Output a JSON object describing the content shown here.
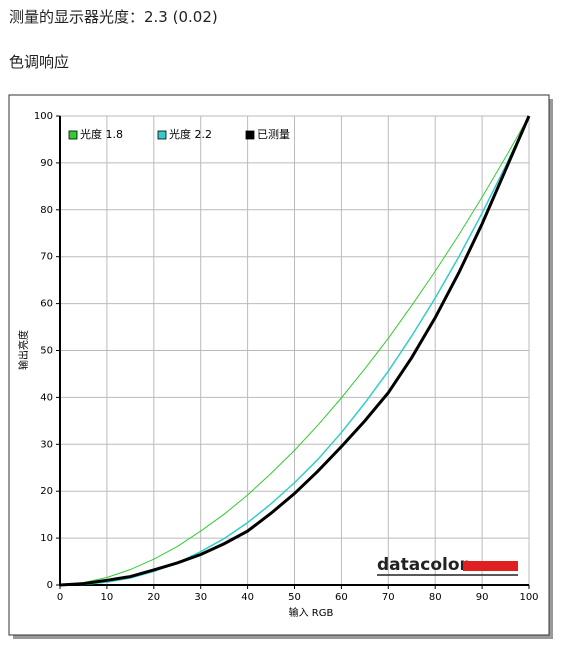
{
  "header": {
    "title": "测量的显示器光度：2.3 (0.02)",
    "section": "色调响应"
  },
  "chart_data": {
    "type": "line",
    "x_label": "输入 RGB",
    "y_label": "输出亮度",
    "logo": "datacolor",
    "x": [
      0,
      5,
      10,
      15,
      20,
      25,
      30,
      35,
      40,
      45,
      50,
      55,
      60,
      65,
      70,
      75,
      80,
      85,
      90,
      95,
      100
    ],
    "series": [
      {
        "name": "光度 1.8",
        "color": "#33cc33",
        "width": 1,
        "values": [
          0,
          0.5,
          1.6,
          3.3,
          5.5,
          8.2,
          11.5,
          15.1,
          19.2,
          23.8,
          28.7,
          34.1,
          39.9,
          46.1,
          52.6,
          59.6,
          66.9,
          74.6,
          82.7,
          91.2,
          100
        ]
      },
      {
        "name": "光度 2.2",
        "color": "#33cccc",
        "width": 1.5,
        "values": [
          0,
          0.1,
          0.6,
          1.5,
          2.9,
          4.7,
          7.1,
          9.9,
          13.3,
          17.3,
          21.8,
          26.8,
          32.5,
          38.8,
          45.6,
          53.1,
          61.2,
          69.9,
          79.3,
          89.3,
          100
        ]
      },
      {
        "name": "已测量",
        "color": "#000000",
        "width": 3,
        "values": [
          0,
          0.3,
          1,
          1.8,
          3.2,
          4.7,
          6.5,
          8.8,
          11.5,
          15.3,
          19.5,
          24.3,
          29.5,
          35,
          41,
          48.5,
          57,
          66.5,
          77,
          88.5,
          100
        ]
      }
    ],
    "xlim": [
      0,
      100
    ],
    "ylim": [
      0,
      100
    ],
    "xticks": [
      0,
      10,
      20,
      30,
      40,
      50,
      60,
      70,
      80,
      90,
      100
    ],
    "yticks": [
      0,
      10,
      20,
      30,
      40,
      50,
      60,
      70,
      80,
      90,
      100
    ],
    "grid": true,
    "legend": "top-left"
  }
}
